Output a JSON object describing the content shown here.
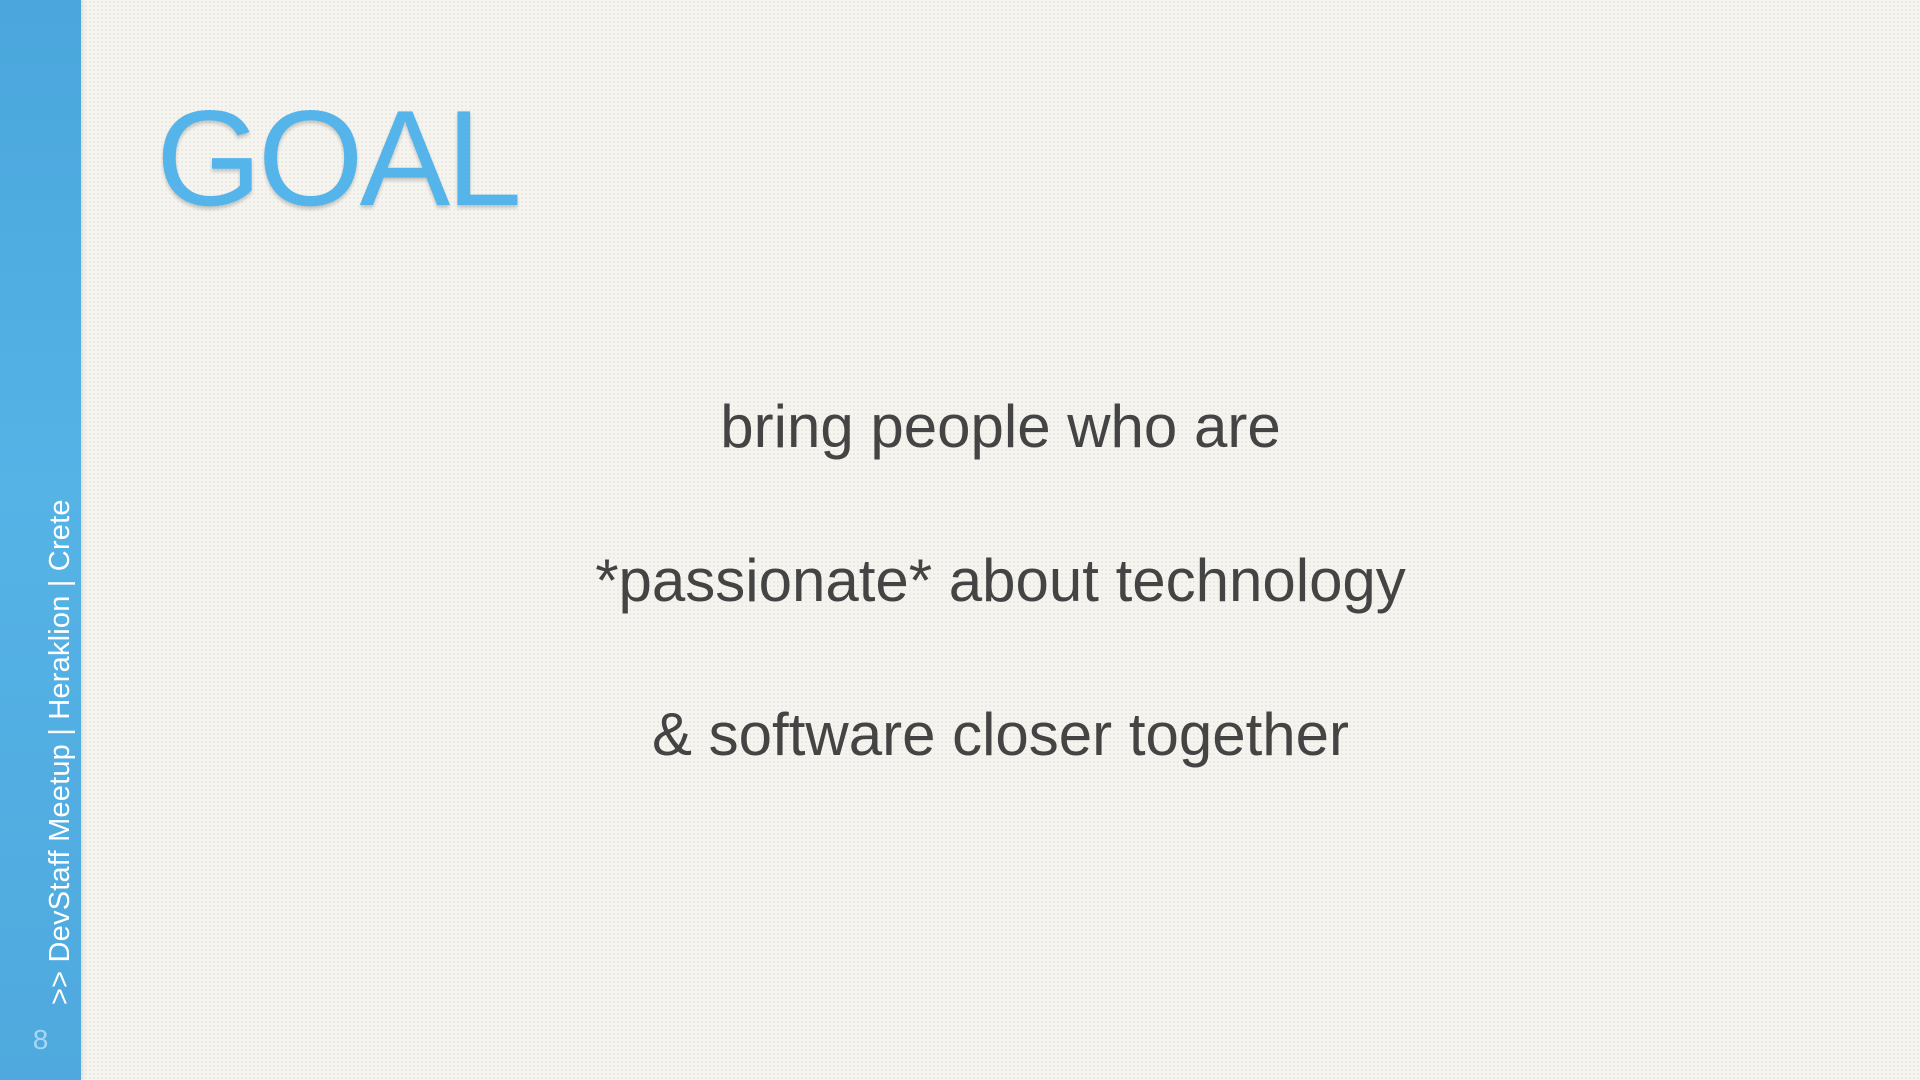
{
  "slide": {
    "title": "GOAL",
    "body_lines": [
      "bring people who are",
      "*passionate* about technology",
      "& software closer together"
    ],
    "footer_label": ">> DevStaff Meetup | Heraklion | Crete",
    "slide_number": "8"
  },
  "colors": {
    "accent": "#55b5ea",
    "sidebar": "#4fa9de",
    "text": "#444444",
    "background": "#f5f4ef"
  }
}
